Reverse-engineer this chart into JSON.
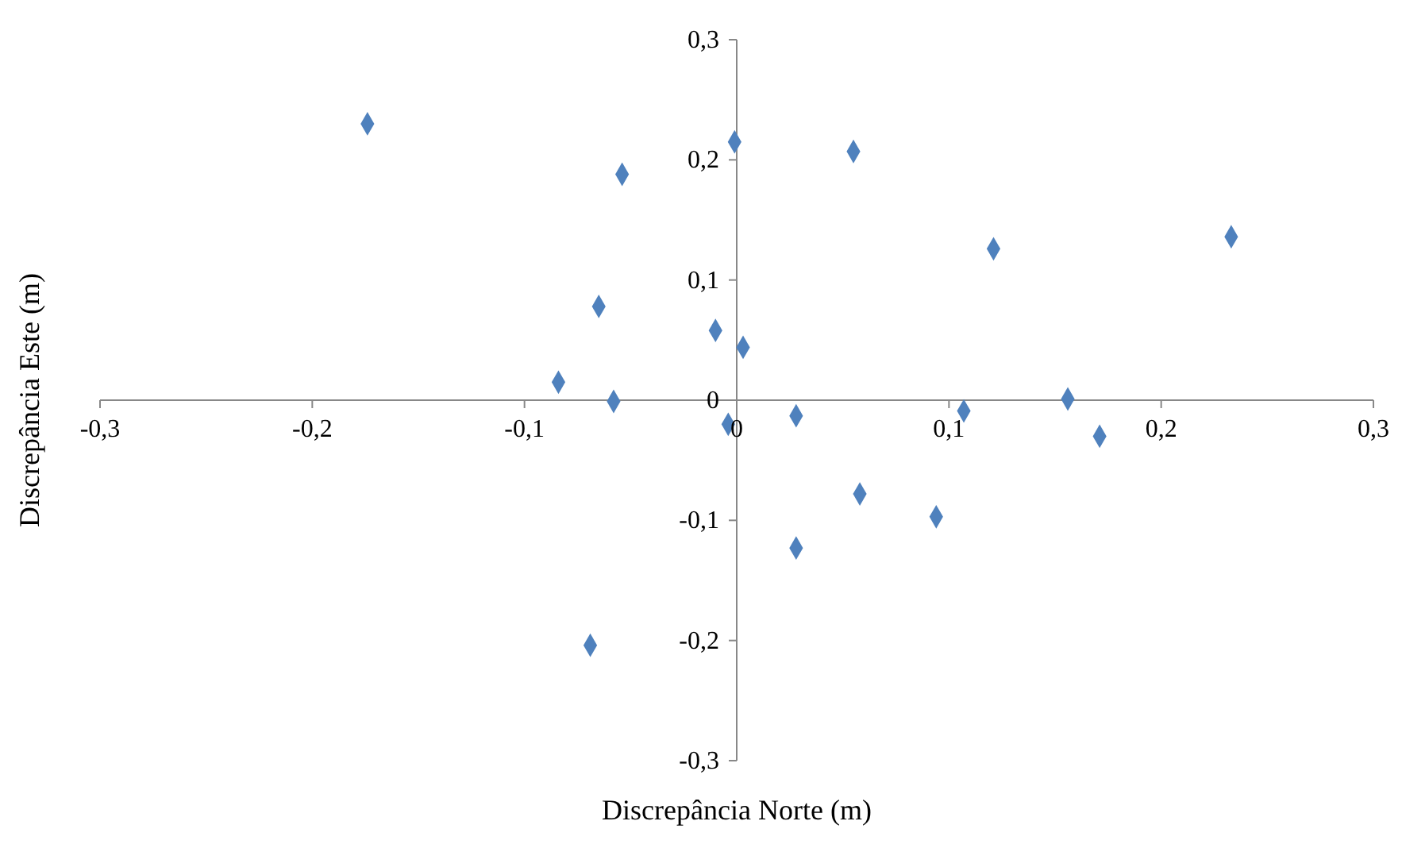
{
  "chart_data": {
    "type": "scatter",
    "xlabel": "Discrepância Norte (m)",
    "ylabel": "Discrepância Este (m)",
    "x": [
      -0.174,
      -0.054,
      -0.001,
      0.055,
      0.121,
      0.233,
      -0.065,
      -0.01,
      0.003,
      -0.084,
      -0.058,
      -0.004,
      0.028,
      0.107,
      0.156,
      0.171,
      0.058,
      0.094,
      0.028,
      -0.069
    ],
    "series": [
      {
        "color": "#4f81bd",
        "values": [
          0.23,
          0.188,
          0.215,
          0.207,
          0.126,
          0.136,
          0.078,
          0.058,
          0.044,
          0.015,
          -0.001,
          -0.02,
          -0.013,
          -0.009,
          0.001,
          -0.03,
          -0.078,
          -0.097,
          -0.123,
          -0.204
        ]
      }
    ],
    "marker": "diamond",
    "grid": false,
    "legend": false,
    "xlim": [
      -0.3,
      0.3
    ],
    "ylim": [
      -0.3,
      0.3
    ],
    "xticks": [
      {
        "value": -0.3,
        "label": "-0,3"
      },
      {
        "value": -0.2,
        "label": "-0,2"
      },
      {
        "value": -0.1,
        "label": "-0,1"
      },
      {
        "value": 0,
        "label": "0"
      },
      {
        "value": 0.1,
        "label": "0,1"
      },
      {
        "value": 0.2,
        "label": "0,2"
      },
      {
        "value": 0.3,
        "label": "0,3"
      }
    ],
    "yticks": [
      {
        "value": -0.3,
        "label": "-0,3"
      },
      {
        "value": -0.2,
        "label": "-0,2"
      },
      {
        "value": -0.1,
        "label": "-0,1"
      },
      {
        "value": 0,
        "label": "0"
      },
      {
        "value": 0.1,
        "label": "0,1"
      },
      {
        "value": 0.2,
        "label": "0,2"
      },
      {
        "value": 0.3,
        "label": "0,3"
      }
    ]
  }
}
